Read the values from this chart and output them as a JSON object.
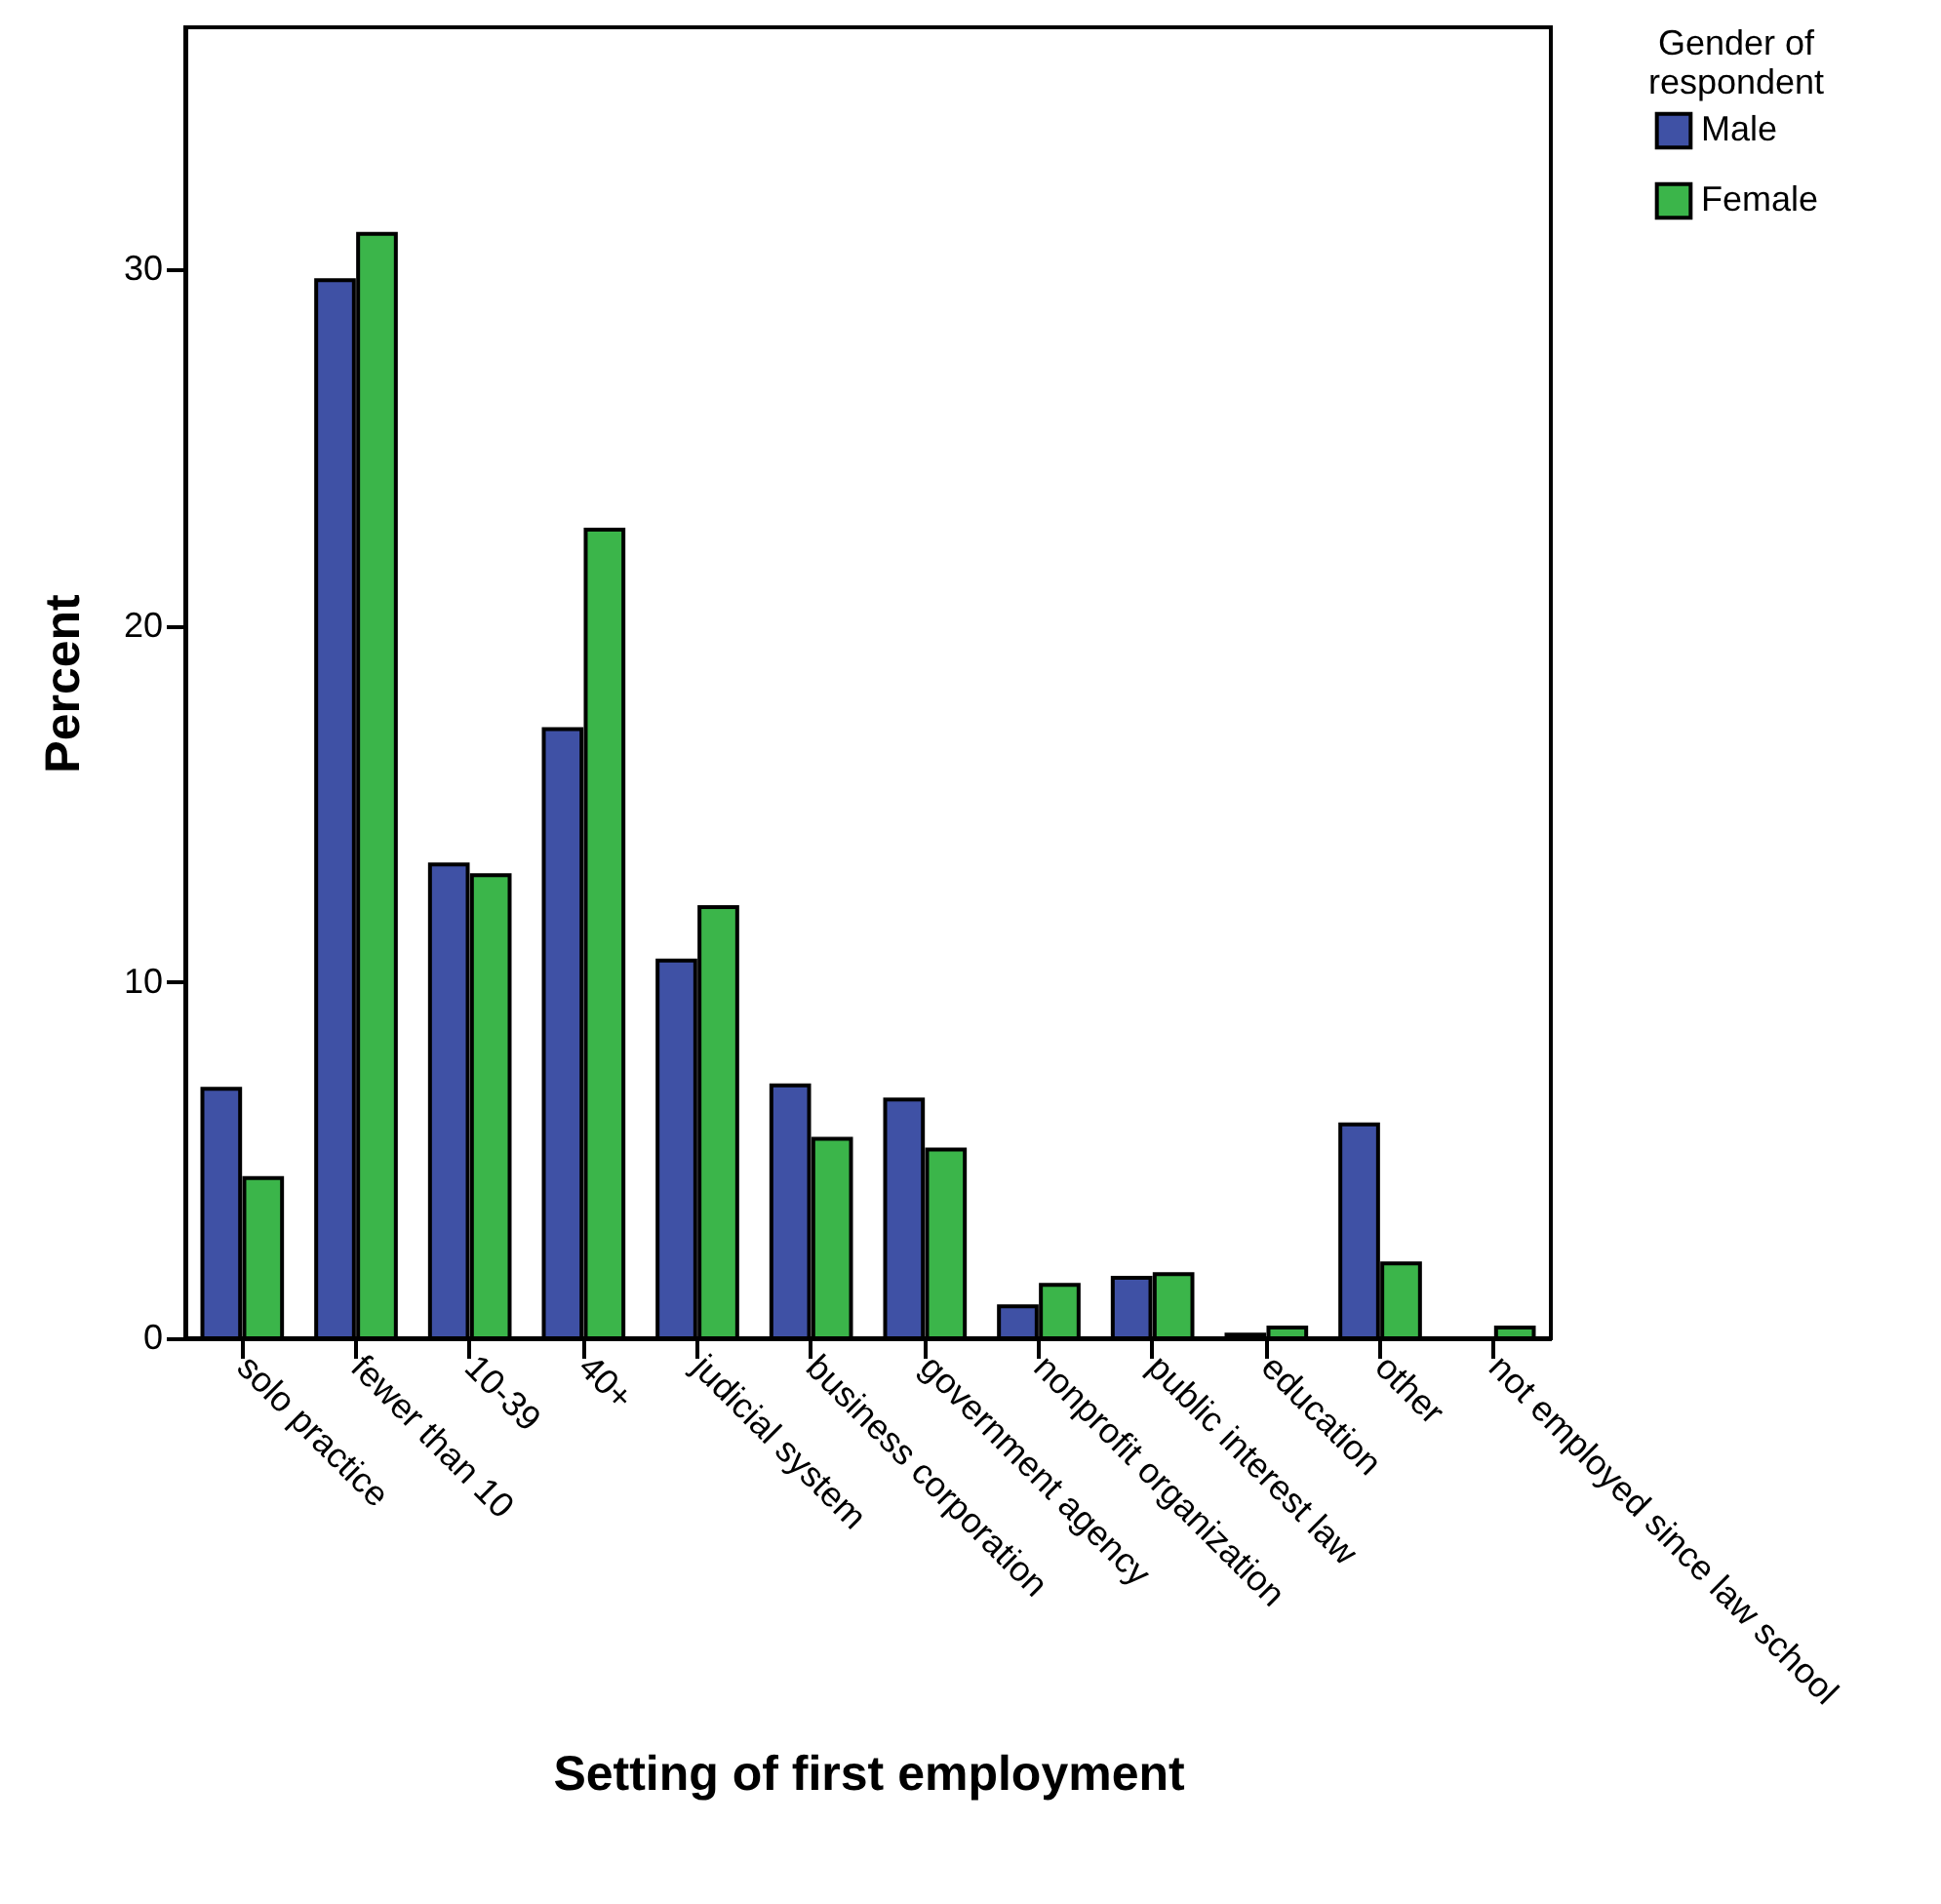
{
  "chart_data": {
    "type": "bar",
    "xlabel": "Setting of first employment",
    "ylabel": "Percent",
    "legend_title": "Gender of respondent",
    "legend": "top right",
    "categories": [
      "solo practice",
      "fewer than 10",
      "10-39",
      "40+",
      "judicial system",
      "business corporation",
      "government agency",
      "nonprofit organization",
      "public interest law",
      "education",
      "other",
      "not employed since law school"
    ],
    "series": [
      {
        "name": "Male",
        "color": "#3f51a5",
        "values": [
          7.0,
          29.7,
          13.3,
          17.1,
          10.6,
          7.1,
          6.7,
          0.9,
          1.7,
          0.1,
          6.0,
          null
        ]
      },
      {
        "name": "Female",
        "color": "#3bb54a",
        "values": [
          4.5,
          31.0,
          13.0,
          22.7,
          12.1,
          5.6,
          5.3,
          1.5,
          1.8,
          0.3,
          2.1,
          0.3
        ]
      }
    ],
    "ylim": [
      0,
      36.8
    ],
    "yticks": [
      0,
      10,
      20,
      30
    ],
    "grid": false
  }
}
